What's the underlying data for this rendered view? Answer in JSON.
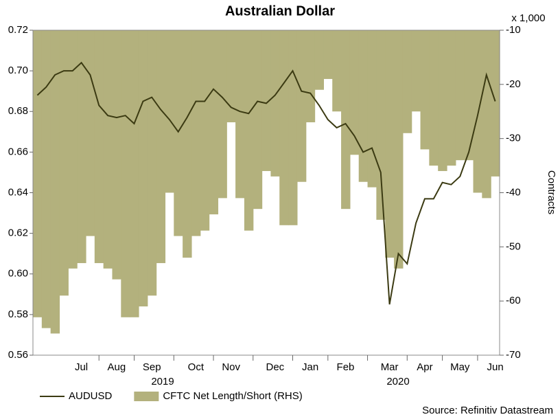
{
  "chart_data": {
    "type": "line_area",
    "title": "Australian Dollar",
    "y2_unit": "x 1,000",
    "y2_label": "Contracts",
    "source": "Source: Refinitiv Datastream",
    "categories": [
      null,
      null,
      null,
      null,
      null,
      "Jul",
      null,
      null,
      null,
      "Aug",
      null,
      null,
      null,
      "Sep",
      null,
      null,
      null,
      null,
      "Oct",
      null,
      null,
      null,
      "Nov",
      null,
      null,
      null,
      null,
      "Dec",
      null,
      null,
      null,
      "Jan",
      null,
      null,
      null,
      "Feb",
      null,
      null,
      null,
      null,
      "Mar",
      null,
      null,
      null,
      "Apr",
      null,
      null,
      null,
      "May",
      null,
      null,
      null,
      "Jun"
    ],
    "years": [
      "2019",
      "2020"
    ],
    "series": [
      {
        "name": "AUDUSD",
        "kind": "line",
        "axis": "y",
        "color": "#3b3a12",
        "values": [
          0.688,
          0.692,
          0.698,
          0.7,
          0.7,
          0.704,
          0.698,
          0.683,
          0.678,
          0.677,
          0.678,
          0.674,
          0.685,
          0.687,
          0.681,
          0.676,
          0.67,
          0.677,
          0.685,
          0.685,
          0.691,
          0.687,
          0.682,
          0.68,
          0.679,
          0.685,
          0.684,
          0.688,
          0.694,
          0.7,
          0.69,
          0.689,
          0.683,
          0.676,
          0.672,
          0.674,
          0.668,
          0.66,
          0.662,
          0.65,
          0.585,
          0.61,
          0.605,
          0.625,
          0.637,
          0.637,
          0.645,
          0.644,
          0.648,
          0.66,
          0.678,
          0.698,
          0.685
        ]
      },
      {
        "name": "CFTC Net Length/Short (RHS)",
        "kind": "area",
        "axis": "y2",
        "color": "#b3b17d",
        "values": [
          -63,
          -65,
          -66,
          -59,
          -54,
          -53,
          -48,
          -53,
          -54,
          -56,
          -63,
          -63,
          -61,
          -59,
          -53,
          -40,
          -48,
          -52,
          -48,
          -47,
          -44,
          -41,
          -27,
          -41,
          -47,
          -43,
          -36,
          -37,
          -46,
          -46,
          -38,
          -27,
          -21,
          -19,
          -25,
          -43,
          -33,
          -38,
          -39,
          -45,
          -52,
          -54,
          -29,
          -25,
          -32,
          -35,
          -36,
          -35,
          -34,
          -34,
          -40,
          -41,
          -37
        ]
      }
    ],
    "ylim": [
      0.56,
      0.72
    ],
    "yticks": [
      0.56,
      0.58,
      {
        "value": 0.6,
        "label": "0.60"
      },
      0.62,
      0.64,
      0.66,
      0.68,
      {
        "value": 0.7,
        "label": "0.70"
      },
      0.72
    ],
    "y2lim": [
      -70,
      -10
    ],
    "y2ticks": [
      -70,
      -60,
      -50,
      -40,
      -30,
      -20,
      -10
    ]
  }
}
